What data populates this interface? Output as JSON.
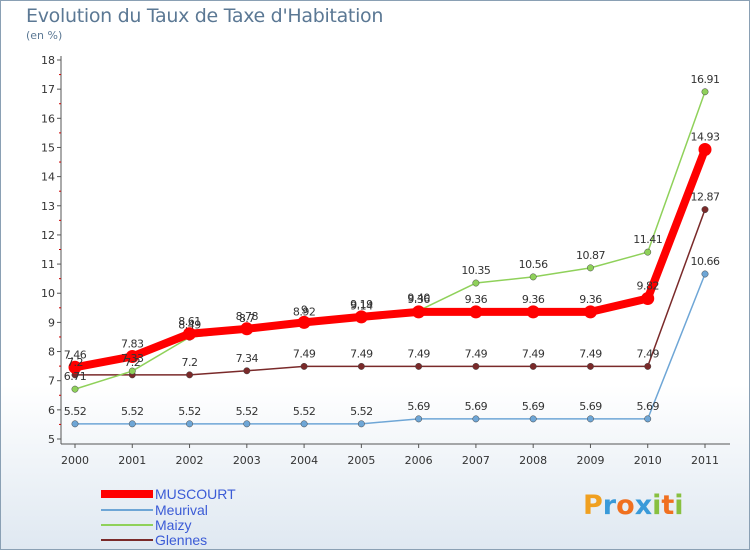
{
  "title": "Evolution du Taux de Taxe d'Habitation",
  "unit": "(en %)",
  "logo": {
    "text": "Proxiti",
    "letters": [
      "P",
      "r",
      "o",
      "x",
      "i",
      "t",
      "i"
    ],
    "colors": [
      "#f0a020",
      "#3a9ad9",
      "#f07020",
      "#3a9ad9",
      "#88c040",
      "#f07020",
      "#88c040"
    ]
  },
  "chart_data": {
    "type": "line",
    "x": [
      "2000",
      "2001",
      "2002",
      "2003",
      "2004",
      "2005",
      "2006",
      "2007",
      "2008",
      "2009",
      "2010",
      "2011"
    ],
    "ylim": [
      5,
      18
    ],
    "yticks": [
      5,
      6,
      7,
      8,
      9,
      10,
      11,
      12,
      13,
      14,
      15,
      16,
      17,
      18
    ],
    "grid": false,
    "legend_position": "bottom-left",
    "series": [
      {
        "name": "MUSCOURT",
        "color": "#ff0000",
        "values": [
          7.46,
          7.83,
          8.61,
          8.78,
          9.0,
          9.19,
          9.36,
          9.36,
          9.36,
          9.36,
          9.82,
          14.93
        ],
        "labels": [
          "7.46",
          "7.83",
          "8.61",
          "8.78",
          "9",
          "9.19",
          "9.36",
          "9.36",
          "9.36",
          "9.36",
          "9.82",
          "14.93"
        ]
      },
      {
        "name": "Meurival",
        "color": "#6ea6d6",
        "values": [
          5.52,
          5.52,
          5.52,
          5.52,
          5.52,
          5.52,
          5.69,
          5.69,
          5.69,
          5.69,
          5.69,
          10.66
        ],
        "labels": [
          "5.52",
          "5.52",
          "5.52",
          "5.52",
          "5.52",
          "5.52",
          "5.69",
          "5.69",
          "5.69",
          "5.69",
          "5.69",
          "10.66"
        ]
      },
      {
        "name": "Maizy",
        "color": "#8fd15a",
        "values": [
          6.71,
          7.33,
          8.49,
          8.7,
          8.92,
          9.14,
          9.4,
          10.35,
          10.56,
          10.87,
          11.41,
          16.91
        ],
        "labels": [
          "6.71",
          "7.33",
          "8.49",
          "8.7",
          "8.92",
          "9.14",
          "9.40",
          "10.35",
          "10.56",
          "10.87",
          "11.41",
          "16.91"
        ]
      },
      {
        "name": "Glennes",
        "color": "#7a2a2a",
        "values": [
          7.2,
          7.2,
          7.2,
          7.34,
          7.49,
          7.49,
          7.49,
          7.49,
          7.49,
          7.49,
          7.49,
          12.87
        ],
        "labels": [
          "7.2",
          "7.2",
          "7.2",
          "7.34",
          "7.49",
          "7.49",
          "7.49",
          "7.49",
          "7.49",
          "7.49",
          "7.49",
          "12.87"
        ]
      }
    ]
  }
}
